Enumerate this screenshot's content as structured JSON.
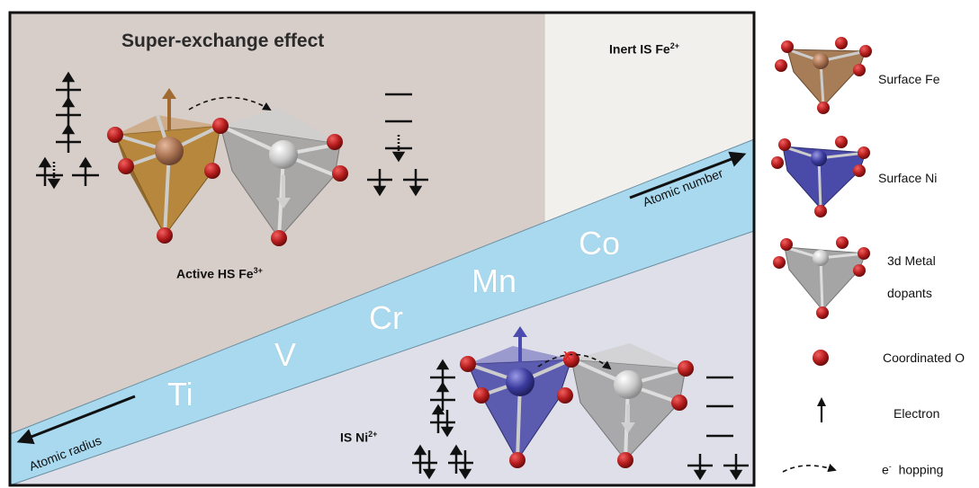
{
  "title": "Super-exchange effect",
  "labels": {
    "inert_prefix": "Inert IS Fe",
    "inert_sup": "2+",
    "active_prefix": "Active HS Fe",
    "active_sup": "3+",
    "ni_prefix": "IS Ni",
    "ni_sup": "2+"
  },
  "band": {
    "elements": [
      "Ti",
      "V",
      "Cr",
      "Mn",
      "Co"
    ],
    "atomic_number_label": "Atomic number",
    "atomic_radius_label": "Atomic radius"
  },
  "legend": {
    "surface_fe": "Surface Fe",
    "surface_ni": "Surface Ni",
    "dopants_line1": "3d Metal",
    "dopants_line2": "dopants",
    "coordinated_o": "Coordinated O",
    "electron": "Electron",
    "hopping_e": "e",
    "hopping_sup": "-",
    "hopping_word": "hopping"
  },
  "colors": {
    "upper_region": "#d6ccc8",
    "inert_region": "#f2f0ed",
    "lower_region": "#dfdfe9",
    "band": "#a8d8ec",
    "fe_polyhedron": "#b07a28",
    "ni_polyhedron": "#4a4aa0",
    "dopant_polyhedron": "#9a9a9a",
    "oxygen": "#b52020"
  },
  "hop_block_mark": "x"
}
